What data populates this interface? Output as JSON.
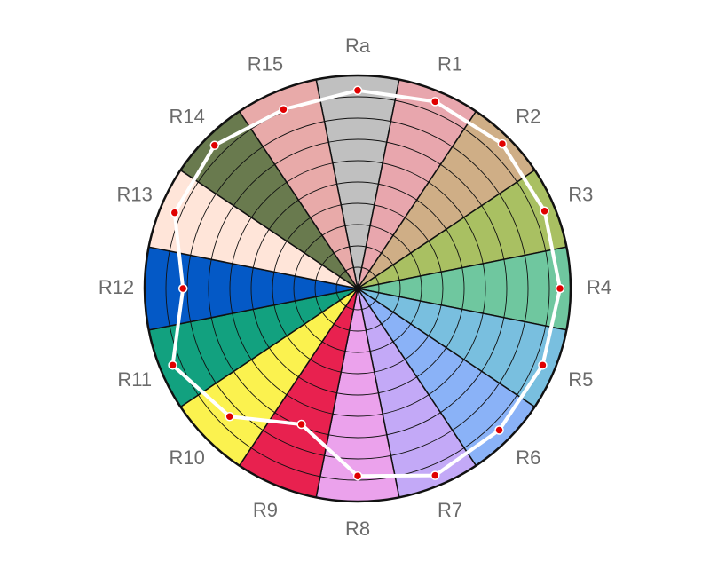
{
  "chart_data": {
    "type": "polar-area-radar",
    "categories": [
      "Ra",
      "R1",
      "R2",
      "R3",
      "R4",
      "R5",
      "R6",
      "R7",
      "R8",
      "R9",
      "R10",
      "R11",
      "R12",
      "R13",
      "R14",
      "R15"
    ],
    "colors": [
      "#c0c0c0",
      "#e8a6ad",
      "#cfae86",
      "#a9c062",
      "#6fc79f",
      "#79bfdf",
      "#8ab2f7",
      "#c3a9f7",
      "#eba2ec",
      "#e8214f",
      "#fbf24f",
      "#12a17f",
      "#0459c6",
      "#ffe5d9",
      "#697a4e",
      "#e8aaa9"
    ],
    "values": [
      93,
      95,
      96,
      95,
      95,
      94,
      94,
      95,
      88,
      69,
      85,
      94,
      82,
      93,
      95,
      91
    ],
    "rlim": [
      0,
      100
    ],
    "rticks": [
      10,
      20,
      30,
      40,
      50,
      60,
      70,
      80,
      90,
      100
    ],
    "line_color": "#ffffff",
    "marker_color": "#e00000"
  }
}
